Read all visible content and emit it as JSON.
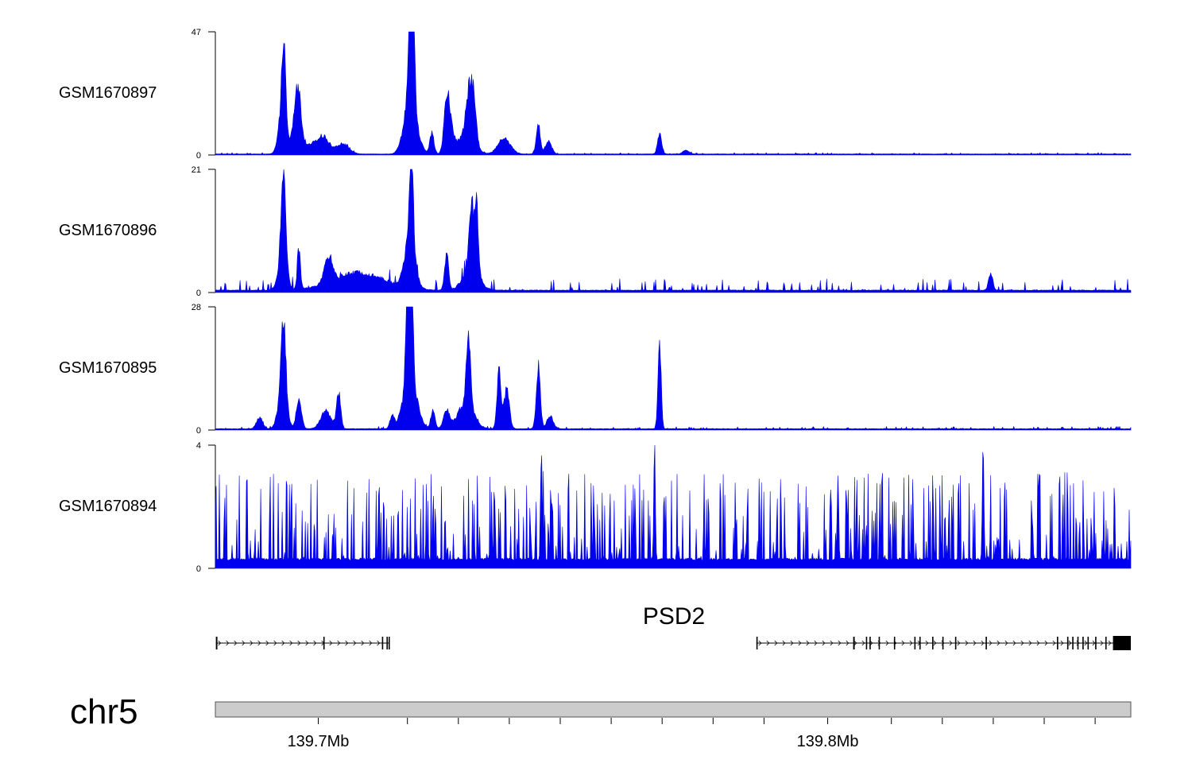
{
  "chart_data": {
    "type": "area",
    "title": "",
    "x_axis": {
      "unit": "Mb",
      "range": [
        139.6798,
        139.8595
      ],
      "tick_labels": [
        {
          "value": 139.7,
          "label": "139.7Mb"
        },
        {
          "value": 139.8,
          "label": "139.8Mb"
        }
      ],
      "minor_ticks": [
        139.7,
        139.7175,
        139.7275,
        139.7375,
        139.7475,
        139.7575,
        139.7675,
        139.7775,
        139.7875,
        139.8,
        139.8125,
        139.8225,
        139.8325,
        139.8425,
        139.8525
      ]
    },
    "color": "#0000ee",
    "tracks": [
      {
        "name": "GSM1670897",
        "ylim": [
          0,
          47
        ],
        "ylim_labels": [
          "0",
          "47"
        ],
        "baseline": 0.4,
        "noise": 0.5,
        "peaks": [
          {
            "x": 139.6932,
            "h": 33,
            "w": 0.0004
          },
          {
            "x": 139.6928,
            "h": 12,
            "w": 0.0007
          },
          {
            "x": 139.696,
            "h": 18,
            "w": 0.0006
          },
          {
            "x": 139.6955,
            "h": 8,
            "w": 0.001
          },
          {
            "x": 139.701,
            "h": 6,
            "w": 0.0012
          },
          {
            "x": 139.6985,
            "h": 3,
            "w": 0.0015
          },
          {
            "x": 139.7048,
            "h": 4,
            "w": 0.0012
          },
          {
            "x": 139.7175,
            "h": 4,
            "w": 0.0008
          },
          {
            "x": 139.718,
            "h": 45,
            "w": 0.0003
          },
          {
            "x": 139.7186,
            "h": 44,
            "w": 0.0003
          },
          {
            "x": 139.7182,
            "h": 20,
            "w": 0.0012
          },
          {
            "x": 139.7223,
            "h": 8,
            "w": 0.0004
          },
          {
            "x": 139.7252,
            "h": 16,
            "w": 0.0005
          },
          {
            "x": 139.7258,
            "h": 10,
            "w": 0.0007
          },
          {
            "x": 139.7295,
            "h": 15,
            "w": 0.0005
          },
          {
            "x": 139.7305,
            "h": 19,
            "w": 0.0005
          },
          {
            "x": 139.729,
            "h": 8,
            "w": 0.0015
          },
          {
            "x": 139.7365,
            "h": 6,
            "w": 0.0012
          },
          {
            "x": 139.7432,
            "h": 11,
            "w": 0.0004
          },
          {
            "x": 139.7452,
            "h": 5,
            "w": 0.0006
          },
          {
            "x": 139.767,
            "h": 8,
            "w": 0.0004
          },
          {
            "x": 139.7722,
            "h": 1.5,
            "w": 0.0006
          }
        ]
      },
      {
        "name": "GSM1670896",
        "ylim": [
          0,
          21
        ],
        "ylim_labels": [
          "0",
          "21"
        ],
        "baseline": 0.4,
        "noise": 2.0,
        "peaks": [
          {
            "x": 139.6932,
            "h": 15,
            "w": 0.0004
          },
          {
            "x": 139.693,
            "h": 6,
            "w": 0.0008
          },
          {
            "x": 139.6962,
            "h": 7,
            "w": 0.0003
          },
          {
            "x": 139.702,
            "h": 4,
            "w": 0.0008
          },
          {
            "x": 139.708,
            "h": 3,
            "w": 0.005
          },
          {
            "x": 139.7183,
            "h": 20,
            "w": 0.0003
          },
          {
            "x": 139.718,
            "h": 9,
            "w": 0.001
          },
          {
            "x": 139.7252,
            "h": 6,
            "w": 0.0004
          },
          {
            "x": 139.73,
            "h": 10,
            "w": 0.0004
          },
          {
            "x": 139.731,
            "h": 12,
            "w": 0.0004
          },
          {
            "x": 139.73,
            "h": 4,
            "w": 0.0015
          },
          {
            "x": 139.832,
            "h": 3,
            "w": 0.0004
          }
        ]
      },
      {
        "name": "GSM1670895",
        "ylim": [
          0,
          28
        ],
        "ylim_labels": [
          "0",
          "28"
        ],
        "baseline": 0.3,
        "noise": 0.5,
        "peaks": [
          {
            "x": 139.6932,
            "h": 16,
            "w": 0.0004
          },
          {
            "x": 139.693,
            "h": 10,
            "w": 0.0008
          },
          {
            "x": 139.6962,
            "h": 7,
            "w": 0.0005
          },
          {
            "x": 139.6885,
            "h": 2.5,
            "w": 0.0006
          },
          {
            "x": 139.7015,
            "h": 4,
            "w": 0.001
          },
          {
            "x": 139.704,
            "h": 8,
            "w": 0.0004
          },
          {
            "x": 139.7175,
            "h": 26,
            "w": 0.0003
          },
          {
            "x": 139.7183,
            "h": 27,
            "w": 0.0003
          },
          {
            "x": 139.718,
            "h": 12,
            "w": 0.0013
          },
          {
            "x": 139.7145,
            "h": 3,
            "w": 0.0004
          },
          {
            "x": 139.7225,
            "h": 4,
            "w": 0.0004
          },
          {
            "x": 139.7252,
            "h": 4,
            "w": 0.0006
          },
          {
            "x": 139.7295,
            "h": 16,
            "w": 0.0004
          },
          {
            "x": 139.729,
            "h": 6,
            "w": 0.0015
          },
          {
            "x": 139.7355,
            "h": 13,
            "w": 0.0004
          },
          {
            "x": 139.737,
            "h": 9,
            "w": 0.0005
          },
          {
            "x": 139.7432,
            "h": 14,
            "w": 0.0004
          },
          {
            "x": 139.7455,
            "h": 3,
            "w": 0.0006
          },
          {
            "x": 139.767,
            "h": 20,
            "w": 0.0003
          }
        ]
      },
      {
        "name": "GSM1670894",
        "ylim": [
          0,
          4
        ],
        "ylim_labels": [
          "0",
          "4"
        ],
        "baseline": 0.3,
        "noise": 2.8,
        "spike_prob": 0.35,
        "peaks": [
          {
            "x": 139.8305,
            "h": 4,
            "w": 0.00015
          },
          {
            "x": 139.7438,
            "h": 3.4,
            "w": 0.00015
          },
          {
            "x": 139.766,
            "h": 3.4,
            "w": 0.00015
          },
          {
            "x": 139.802,
            "h": 3.0,
            "w": 0.00015
          }
        ]
      }
    ],
    "gene": {
      "name": "PSD2",
      "strand": "+",
      "transcripts": [
        {
          "start": 139.6799,
          "end": 139.714,
          "exons": [
            [
              139.6799,
              139.6802
            ],
            [
              139.701,
              139.7011
            ],
            [
              139.7125,
              139.7127
            ],
            [
              139.7134,
              139.7135
            ],
            [
              139.7138,
              139.714
            ]
          ]
        },
        {
          "start": 139.786,
          "end": 139.8595,
          "exons": [
            [
              139.786,
              139.7861
            ],
            [
              139.805,
              139.8053
            ],
            [
              139.8075,
              139.8077
            ],
            [
              139.8082,
              139.8084
            ],
            [
              139.81,
              139.8101
            ],
            [
              139.813,
              139.8131
            ],
            [
              139.817,
              139.8171
            ],
            [
              139.818,
              139.8181
            ],
            [
              139.8205,
              139.8206
            ],
            [
              139.8225,
              139.8226
            ],
            [
              139.825,
              139.8251
            ],
            [
              139.831,
              139.8311
            ],
            [
              139.845,
              139.8451
            ],
            [
              139.847,
              139.8472
            ],
            [
              139.848,
              139.8482
            ],
            [
              139.849,
              139.8491
            ],
            [
              139.85,
              139.8502
            ],
            [
              139.851,
              139.8511
            ],
            [
              139.8525,
              139.8526
            ],
            [
              139.8545,
              139.8546
            ],
            [
              139.856,
              139.8595
            ]
          ]
        }
      ]
    },
    "chromosome": "chr5"
  }
}
